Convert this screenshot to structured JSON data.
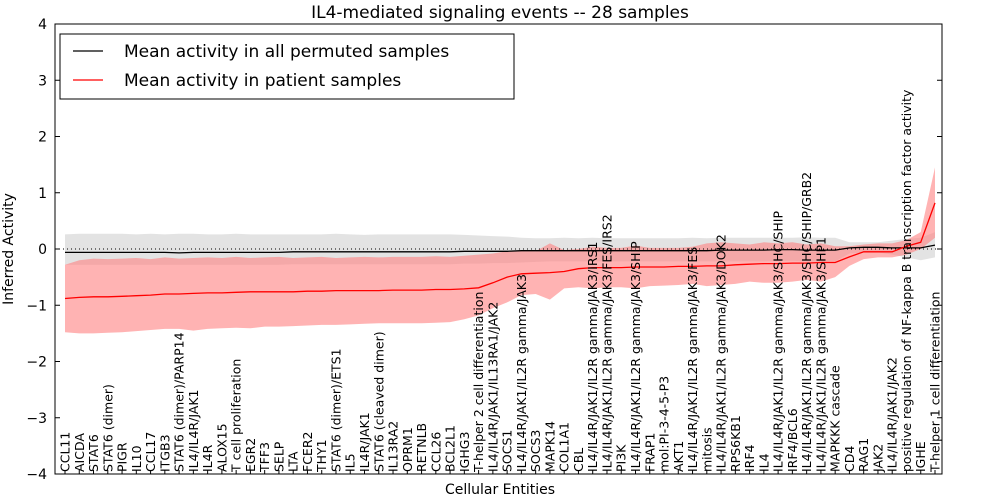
{
  "chart_data": {
    "type": "line",
    "title": "IL4-mediated signaling events -- 28 samples",
    "xlabel": "Cellular Entities",
    "ylabel": "Inferred Activity",
    "ylim": [
      -4,
      4
    ],
    "yticks": [
      -4,
      -3,
      -2,
      -1,
      0,
      1,
      2,
      3,
      4
    ],
    "ytick_labels": [
      "−4",
      "−3",
      "−2",
      "−1",
      "0",
      "1",
      "2",
      "3",
      "4"
    ],
    "reference_line": {
      "y": 0,
      "style": "dotted"
    },
    "legend": {
      "placement": "top-left",
      "entries": [
        {
          "label": "Mean activity in all permuted samples",
          "color": "#000000"
        },
        {
          "label": "Mean activity in patient samples",
          "color": "#ff0000"
        }
      ]
    },
    "colors": {
      "permuted_line": "#000000",
      "permuted_band": "#d9d9d9",
      "patient_line": "#ff0000",
      "patient_band": "#ff8080"
    },
    "categories": [
      "CCL11",
      "AICDA",
      "STAT6",
      "STAT6 (dimer)",
      "PIGR",
      "IL10",
      "CCL17",
      "ITGB3",
      "STAT6 (dimer)/PARP14",
      "IL4/IL4R/JAK1",
      "IL4R",
      "ALOX15",
      "T cell proliferation",
      "EGR2",
      "TFF3",
      "SELP",
      "LTA",
      "FCER2",
      "THY1",
      "STAT6 (dimer)/ETS1",
      "IL5",
      "IL4R/JAK1",
      "STAT6 (cleaved dimer)",
      "IL13RA2",
      "OPRM1",
      "RETNLB",
      "CCL26",
      "BCL2L1",
      "IGHG3",
      "T-helper 2 cell differentiation",
      "IL4/IL4R/JAK1/IL13RA1/JAK2",
      "SOCS1",
      "IL4/IL4R/JAK1/IL2R gamma/JAK3",
      "SOCS3",
      "MAPK14",
      "COL1A1",
      "CBL",
      "IL4/IL4R/JAK1/IL2R gamma/JAK3/IRS1",
      "IL4/IL4R/JAK1/IL2R gamma/JAK3/FES/IRS2",
      "PI3K",
      "IL4/IL4R/JAK1/IL2R gamma/JAK3/SHIP",
      "FRAP1",
      "mol:PI-3-4-5-P3",
      "AKT1",
      "IL4/IL4R/JAK1/IL2R gamma/JAK3/FES",
      "mitosis",
      "IL4/IL4R/JAK1/IL2R gamma/JAK3/DOK2",
      "RPS6KB1",
      "IRF4",
      "IL4",
      "IL4/IL4R/JAK1/IL2R gamma/JAK3/SHC/SHIP",
      "IRF4/BCL6",
      "IL4/IL4R/JAK1/IL2R gamma/JAK3/SHC/SHIP/GRB2",
      "IL4/IL4R/JAK1/IL2R gamma/JAK3/SHP1",
      "MAPKKK cascade",
      "CD4",
      "RAG1",
      "JAK2",
      "IL4/IL4R/JAK1/JAK2",
      "positive regulation of NF-kappa B transcription factor activity",
      "IGHE",
      "T-helper 1 cell differentiation"
    ],
    "series": [
      {
        "name": "Mean activity in all permuted samples",
        "values": [
          -0.06,
          -0.06,
          -0.06,
          -0.06,
          -0.06,
          -0.06,
          -0.06,
          -0.06,
          -0.07,
          -0.06,
          -0.06,
          -0.06,
          -0.06,
          -0.06,
          -0.06,
          -0.06,
          -0.05,
          -0.05,
          -0.05,
          -0.05,
          -0.05,
          -0.05,
          -0.05,
          -0.05,
          -0.05,
          -0.05,
          -0.05,
          -0.05,
          -0.04,
          -0.04,
          -0.04,
          -0.04,
          -0.03,
          -0.03,
          -0.03,
          -0.03,
          -0.03,
          -0.03,
          -0.03,
          -0.03,
          -0.03,
          -0.03,
          -0.03,
          -0.03,
          -0.03,
          -0.03,
          -0.02,
          -0.02,
          -0.02,
          -0.02,
          -0.01,
          -0.01,
          -0.02,
          -0.02,
          -0.02,
          0.02,
          0.03,
          0.03,
          0.02,
          0.02,
          0.02,
          0.07
        ],
        "lower": [
          -0.28,
          -0.28,
          -0.28,
          -0.28,
          -0.28,
          -0.28,
          -0.28,
          -0.28,
          -0.28,
          -0.28,
          -0.28,
          -0.28,
          -0.28,
          -0.28,
          -0.28,
          -0.28,
          -0.27,
          -0.27,
          -0.27,
          -0.27,
          -0.27,
          -0.27,
          -0.27,
          -0.27,
          -0.27,
          -0.27,
          -0.27,
          -0.27,
          -0.26,
          -0.26,
          -0.25,
          -0.25,
          -0.24,
          -0.23,
          -0.22,
          -0.22,
          -0.22,
          -0.22,
          -0.22,
          -0.22,
          -0.22,
          -0.22,
          -0.22,
          -0.22,
          -0.22,
          -0.22,
          -0.22,
          -0.22,
          -0.22,
          -0.22,
          -0.21,
          -0.21,
          -0.22,
          -0.22,
          -0.22,
          -0.08,
          -0.06,
          -0.06,
          -0.1,
          -0.15,
          -0.2,
          -0.15
        ],
        "upper": [
          0.26,
          0.27,
          0.27,
          0.27,
          0.27,
          0.26,
          0.27,
          0.26,
          0.27,
          0.27,
          0.26,
          0.26,
          0.27,
          0.26,
          0.26,
          0.26,
          0.26,
          0.26,
          0.26,
          0.27,
          0.26,
          0.25,
          0.26,
          0.26,
          0.26,
          0.26,
          0.26,
          0.26,
          0.25,
          0.24,
          0.23,
          0.22,
          0.2,
          0.19,
          0.19,
          0.2,
          0.19,
          0.2,
          0.19,
          0.19,
          0.19,
          0.19,
          0.19,
          0.19,
          0.2,
          0.19,
          0.2,
          0.2,
          0.2,
          0.2,
          0.2,
          0.2,
          0.21,
          0.2,
          0.2,
          0.12,
          0.12,
          0.12,
          0.15,
          0.18,
          0.2,
          0.3
        ]
      },
      {
        "name": "Mean activity in patient samples",
        "values": [
          -0.88,
          -0.86,
          -0.85,
          -0.85,
          -0.84,
          -0.83,
          -0.82,
          -0.8,
          -0.8,
          -0.79,
          -0.78,
          -0.78,
          -0.77,
          -0.76,
          -0.76,
          -0.76,
          -0.76,
          -0.75,
          -0.75,
          -0.74,
          -0.74,
          -0.74,
          -0.74,
          -0.73,
          -0.73,
          -0.73,
          -0.72,
          -0.72,
          -0.71,
          -0.69,
          -0.6,
          -0.5,
          -0.44,
          -0.43,
          -0.42,
          -0.4,
          -0.35,
          -0.33,
          -0.33,
          -0.33,
          -0.32,
          -0.32,
          -0.32,
          -0.31,
          -0.31,
          -0.3,
          -0.3,
          -0.28,
          -0.27,
          -0.26,
          -0.26,
          -0.25,
          -0.25,
          -0.24,
          -0.24,
          -0.14,
          -0.05,
          -0.05,
          -0.05,
          0.05,
          0.12,
          0.82
        ],
        "lower": [
          -1.48,
          -1.5,
          -1.5,
          -1.49,
          -1.48,
          -1.46,
          -1.44,
          -1.42,
          -1.42,
          -1.45,
          -1.42,
          -1.41,
          -1.4,
          -1.41,
          -1.38,
          -1.38,
          -1.37,
          -1.36,
          -1.35,
          -1.35,
          -1.34,
          -1.33,
          -1.32,
          -1.32,
          -1.32,
          -1.32,
          -1.31,
          -1.3,
          -1.25,
          -1.18,
          -1.05,
          -0.95,
          -0.82,
          -0.8,
          -0.9,
          -0.7,
          -0.68,
          -0.7,
          -0.68,
          -0.68,
          -0.7,
          -0.66,
          -0.65,
          -0.64,
          -0.62,
          -0.66,
          -0.64,
          -0.62,
          -0.58,
          -0.6,
          -0.6,
          -0.58,
          -0.55,
          -0.58,
          -0.5,
          -0.3,
          -0.18,
          -0.15,
          -0.15,
          -0.1,
          0.0,
          0.2
        ],
        "upper": [
          -0.28,
          -0.2,
          -0.17,
          -0.18,
          -0.17,
          -0.16,
          -0.18,
          -0.15,
          -0.17,
          -0.16,
          -0.15,
          -0.16,
          -0.14,
          -0.16,
          -0.15,
          -0.14,
          -0.16,
          -0.15,
          -0.14,
          -0.16,
          -0.15,
          -0.14,
          -0.15,
          -0.14,
          -0.14,
          -0.14,
          -0.13,
          -0.14,
          -0.12,
          -0.1,
          -0.08,
          -0.04,
          -0.02,
          -0.04,
          0.1,
          -0.02,
          0.0,
          0.04,
          0.02,
          0.02,
          0.06,
          0.02,
          0.02,
          0.02,
          0.04,
          0.1,
          0.12,
          0.1,
          0.08,
          0.12,
          0.1,
          0.12,
          0.08,
          0.1,
          0.05,
          0.05,
          0.08,
          0.1,
          0.1,
          0.16,
          0.3,
          1.45
        ]
      }
    ]
  }
}
